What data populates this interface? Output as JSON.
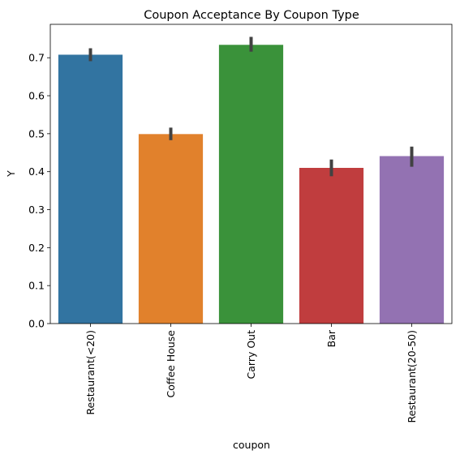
{
  "chart_data": {
    "type": "bar",
    "title": "Coupon Acceptance By Coupon Type",
    "xlabel": "coupon",
    "ylabel": "Y",
    "categories": [
      "Restaurant(<20)",
      "Coffee House",
      "Carry Out",
      "Bar",
      "Restaurant(20-50)"
    ],
    "values": [
      0.708,
      0.499,
      0.734,
      0.41,
      0.441
    ],
    "error_bars": [
      {
        "low": 0.691,
        "high": 0.725
      },
      {
        "low": 0.483,
        "high": 0.516
      },
      {
        "low": 0.716,
        "high": 0.755
      },
      {
        "low": 0.388,
        "high": 0.432
      },
      {
        "low": 0.413,
        "high": 0.466
      }
    ],
    "colors": [
      "#3274a1",
      "#e1812c",
      "#3a923a",
      "#c03d3e",
      "#9372b2"
    ],
    "error_color": "#424242",
    "ylim": [
      0,
      0.788
    ],
    "yticks": [
      "0.0",
      "0.1",
      "0.2",
      "0.3",
      "0.4",
      "0.5",
      "0.6",
      "0.7"
    ],
    "grid": false,
    "legend": "none"
  }
}
